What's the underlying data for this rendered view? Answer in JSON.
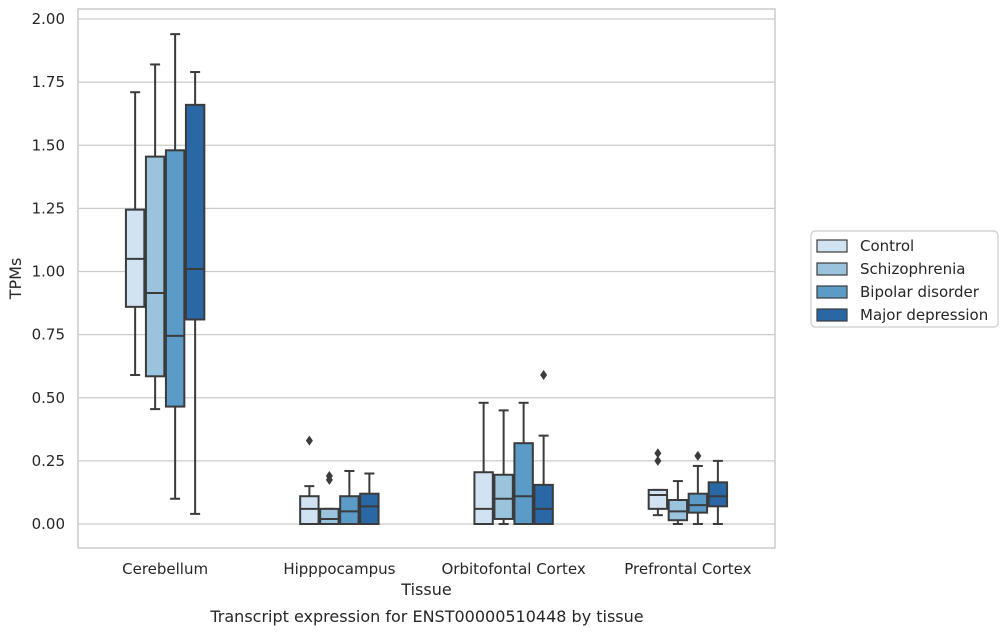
{
  "caption": "Transcript expression for ENST00000510448 by tissue",
  "chart_data": {
    "type": "box",
    "title": "",
    "xlabel": "Tissue",
    "ylabel": "TPMs",
    "ylim": [
      -0.1,
      2.05
    ],
    "yticks": [
      "0.00",
      "0.25",
      "0.50",
      "0.75",
      "1.00",
      "1.25",
      "1.50",
      "1.75",
      "2.00"
    ],
    "grid": "horizontal",
    "legend_position": "right",
    "categories": [
      "Cerebellum",
      "Hipppocampus",
      "Orbitofontal Cortex",
      "Prefrontal Cortex"
    ],
    "series": [
      {
        "name": "Control",
        "color": "#d1e2f2",
        "boxes": [
          {
            "whislo": 0.59,
            "q1": 0.86,
            "med": 1.05,
            "q3": 1.245,
            "whishi": 1.71,
            "fliers": []
          },
          {
            "whislo": 0.0,
            "q1": 0.0,
            "med": 0.06,
            "q3": 0.11,
            "whishi": 0.15,
            "fliers": [
              0.33
            ]
          },
          {
            "whislo": 0.0,
            "q1": 0.0,
            "med": 0.06,
            "q3": 0.205,
            "whishi": 0.48,
            "fliers": []
          },
          {
            "whislo": 0.035,
            "q1": 0.06,
            "med": 0.115,
            "q3": 0.135,
            "whishi": 0.135,
            "fliers": [
              0.25,
              0.28
            ]
          }
        ]
      },
      {
        "name": "Schizophrenia",
        "color": "#9ac3de",
        "boxes": [
          {
            "whislo": 0.455,
            "q1": 0.585,
            "med": 0.915,
            "q3": 1.455,
            "whishi": 1.82,
            "fliers": []
          },
          {
            "whislo": 0.0,
            "q1": 0.0,
            "med": 0.02,
            "q3": 0.06,
            "whishi": 0.06,
            "fliers": [
              0.175,
              0.19
            ]
          },
          {
            "whislo": 0.0,
            "q1": 0.02,
            "med": 0.1,
            "q3": 0.195,
            "whishi": 0.45,
            "fliers": []
          },
          {
            "whislo": 0.0,
            "q1": 0.015,
            "med": 0.05,
            "q3": 0.095,
            "whishi": 0.17,
            "fliers": []
          }
        ]
      },
      {
        "name": "Bipolar disorder",
        "color": "#5a9bc8",
        "boxes": [
          {
            "whislo": 0.1,
            "q1": 0.465,
            "med": 0.745,
            "q3": 1.48,
            "whishi": 1.94,
            "fliers": []
          },
          {
            "whislo": 0.0,
            "q1": 0.0,
            "med": 0.05,
            "q3": 0.11,
            "whishi": 0.21,
            "fliers": []
          },
          {
            "whislo": 0.0,
            "q1": 0.0,
            "med": 0.11,
            "q3": 0.32,
            "whishi": 0.48,
            "fliers": []
          },
          {
            "whislo": 0.0,
            "q1": 0.045,
            "med": 0.075,
            "q3": 0.12,
            "whishi": 0.23,
            "fliers": [
              0.27
            ]
          }
        ]
      },
      {
        "name": "Major depression",
        "color": "#2a67a5",
        "boxes": [
          {
            "whislo": 0.04,
            "q1": 0.81,
            "med": 1.01,
            "q3": 1.66,
            "whishi": 1.79,
            "fliers": []
          },
          {
            "whislo": 0.0,
            "q1": 0.0,
            "med": 0.07,
            "q3": 0.12,
            "whishi": 0.2,
            "fliers": []
          },
          {
            "whislo": 0.0,
            "q1": 0.0,
            "med": 0.06,
            "q3": 0.155,
            "whishi": 0.35,
            "fliers": [
              0.59
            ]
          },
          {
            "whislo": 0.0,
            "q1": 0.07,
            "med": 0.11,
            "q3": 0.165,
            "whishi": 0.25,
            "fliers": []
          }
        ]
      }
    ]
  }
}
